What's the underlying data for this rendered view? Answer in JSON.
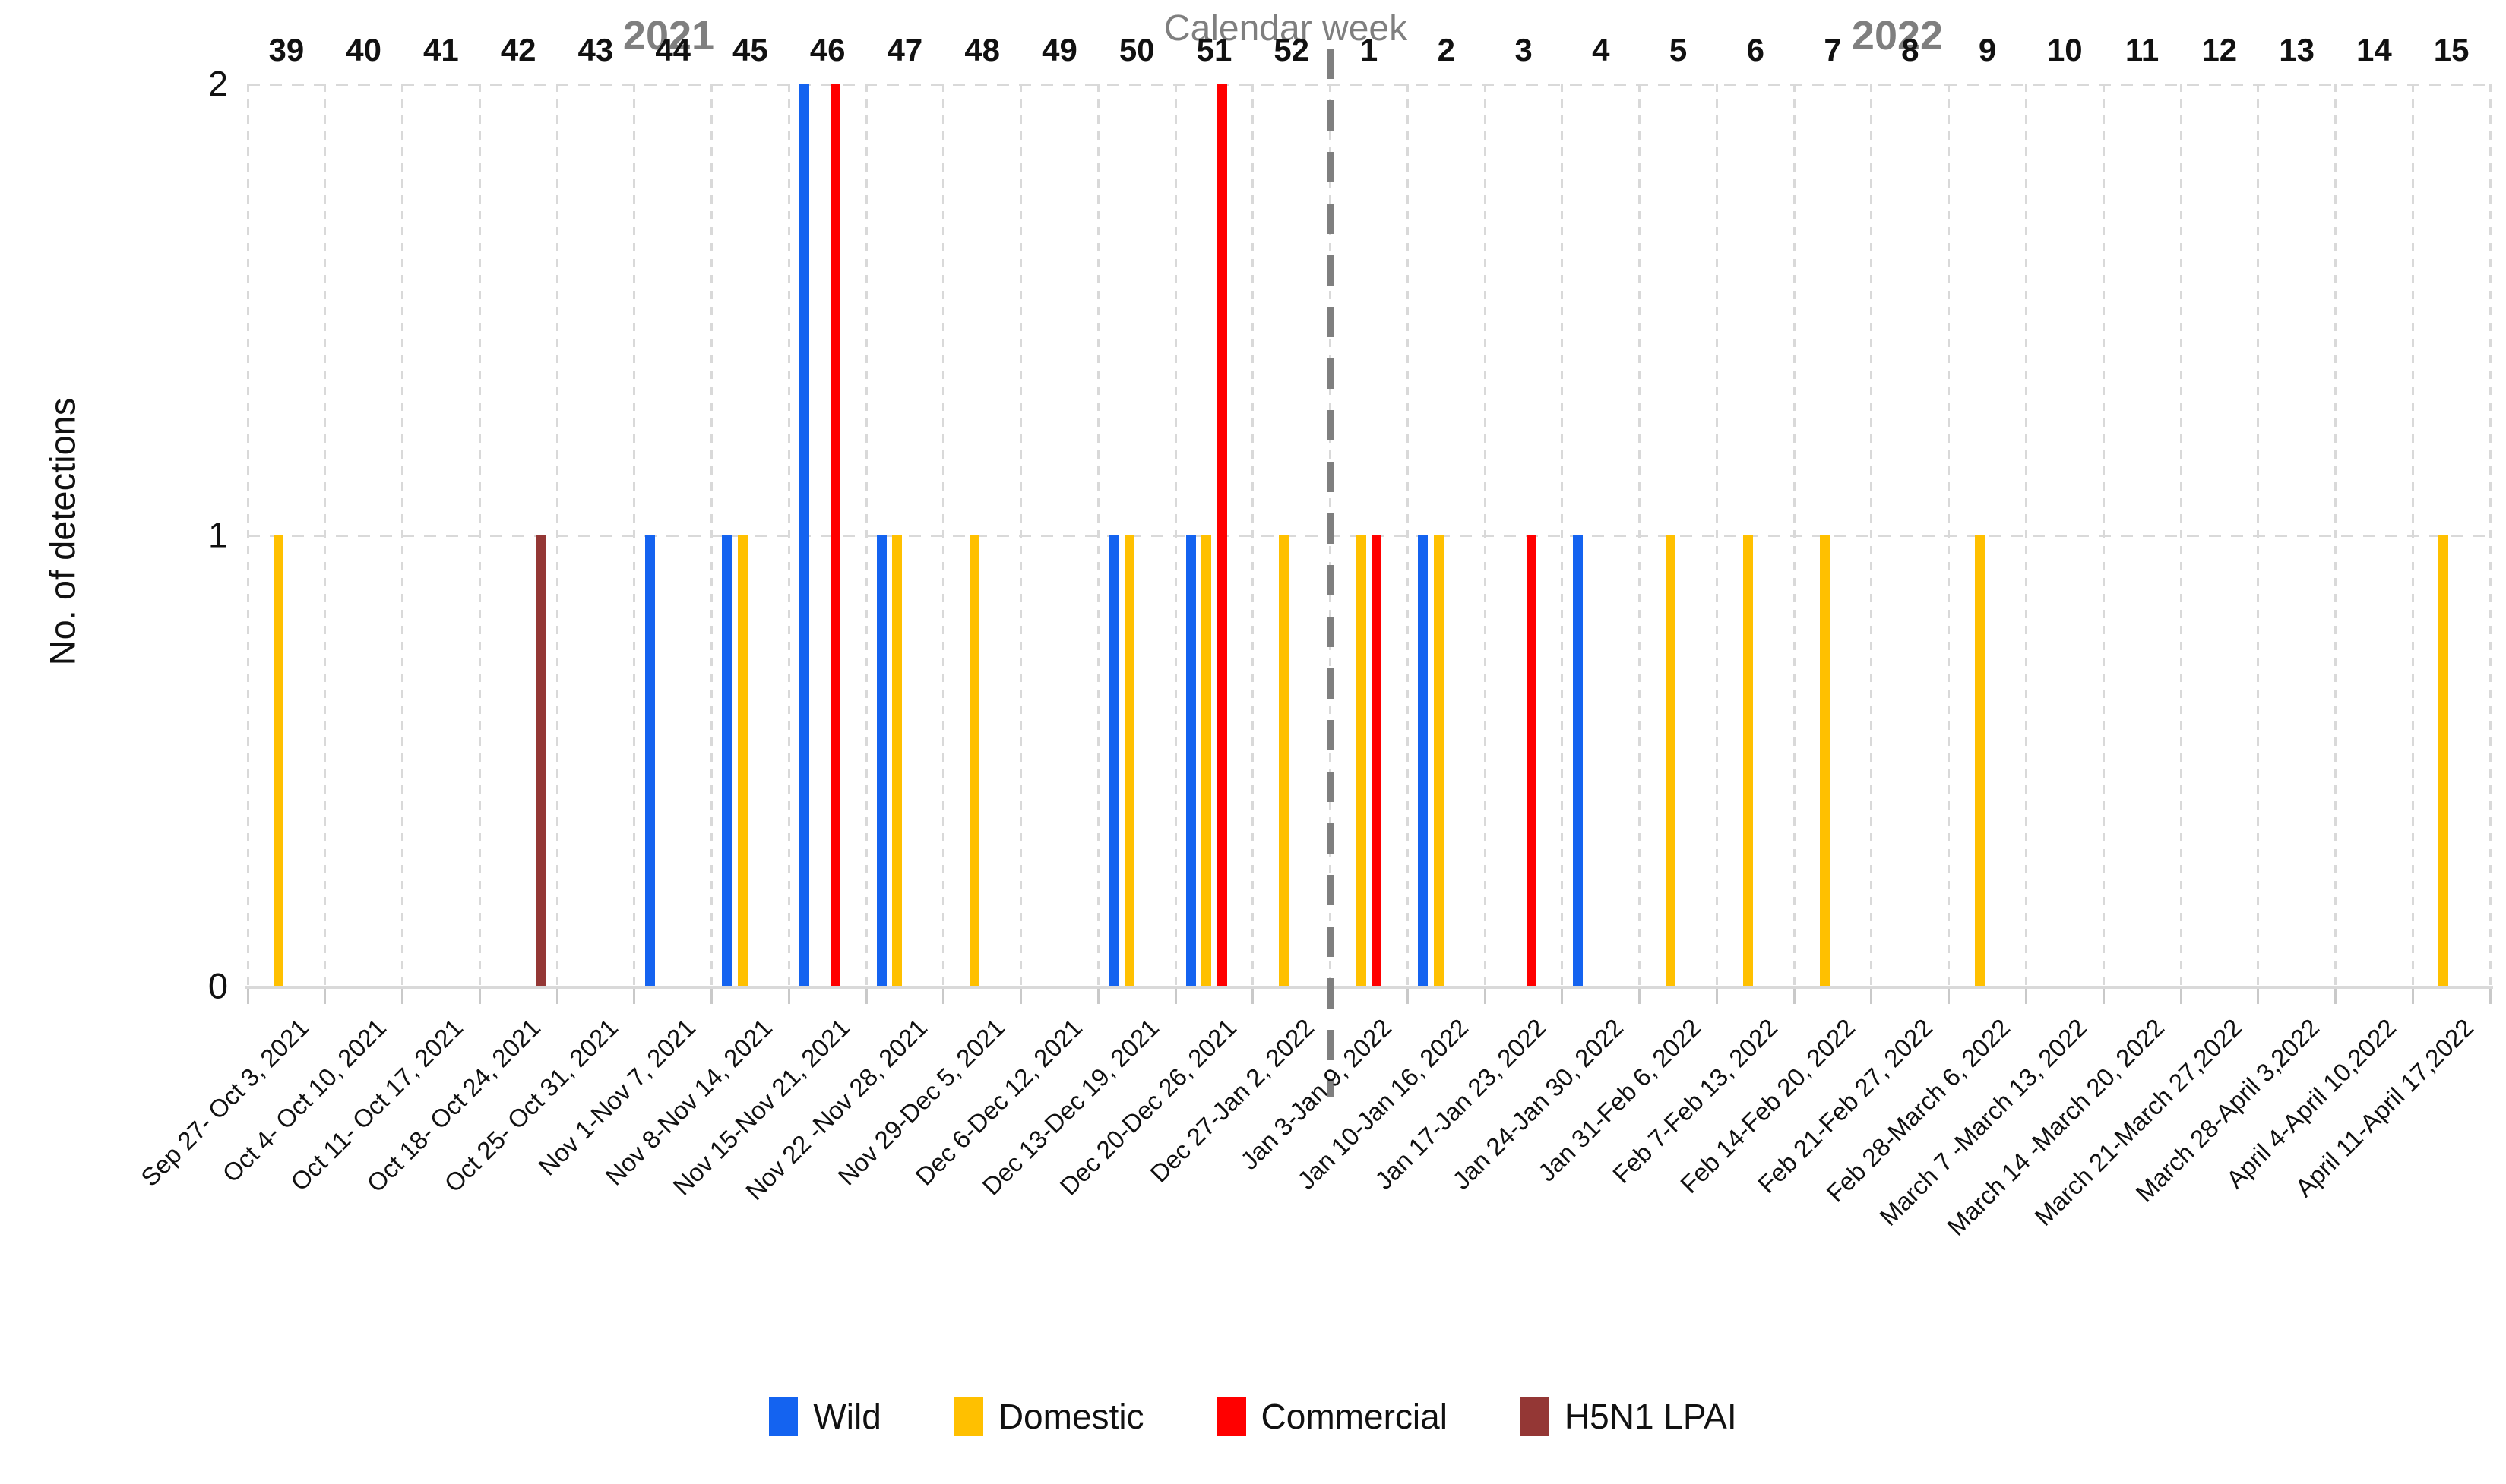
{
  "header": {
    "axis_top_title": "Calendar week",
    "year_left": "2021",
    "year_right": "2022"
  },
  "y_axis": {
    "label": "No. of detections",
    "ticks": [
      "2",
      "1",
      "0"
    ]
  },
  "legend": [
    {
      "label": "Wild",
      "color": "#1463f0"
    },
    {
      "label": "Domestic",
      "color": "#ffc000"
    },
    {
      "label": "Commercial",
      "color": "#ff0000"
    },
    {
      "label": "H5N1 LPAI",
      "color": "#943735"
    }
  ],
  "chart_data": {
    "type": "bar",
    "title": "Calendar week",
    "xlabel": "Calendar week",
    "ylabel": "No. of detections",
    "ylim": [
      0,
      2
    ],
    "grid": "dashed",
    "legend_position": "bottom",
    "year_divider_after_index": 13,
    "categories_week": [
      "39",
      "40",
      "41",
      "42",
      "43",
      "44",
      "45",
      "46",
      "47",
      "48",
      "49",
      "50",
      "51",
      "52",
      "1",
      "2",
      "3",
      "4",
      "5",
      "6",
      "7",
      "8",
      "9",
      "10",
      "11",
      "12",
      "13",
      "14",
      "15"
    ],
    "categories_dates": [
      "Sep 27- Oct 3, 2021",
      "Oct 4- Oct 10, 2021",
      "Oct 11- Oct 17, 2021",
      "Oct 18- Oct 24, 2021",
      "Oct 25- Oct 31, 2021",
      "Nov 1-Nov 7, 2021",
      "Nov 8-Nov 14, 2021",
      "Nov 15-Nov 21, 2021",
      "Nov 22 -Nov 28, 2021",
      "Nov 29-Dec 5, 2021",
      "Dec 6-Dec 12, 2021",
      "Dec 13-Dec 19, 2021",
      "Dec 20-Dec 26, 2021",
      "Dec 27-Jan 2, 2022",
      "Jan 3-Jan 9, 2022",
      "Jan 10-Jan 16, 2022",
      "Jan 17-Jan 23, 2022",
      "Jan 24-Jan 30, 2022",
      "Jan 31-Feb 6, 2022",
      "Feb 7-Feb 13, 2022",
      "Feb 14-Feb 20, 2022",
      "Feb 21-Feb 27, 2022",
      "Feb 28-March 6, 2022",
      "March 7 -March 13, 2022",
      "March 14 -March 20, 2022",
      "March 21-March 27,2022",
      "March 28-April 3,2022",
      "April 4-April 10,2022",
      "April 11-April 17,2022"
    ],
    "series": [
      {
        "name": "Wild",
        "color": "#1463f0",
        "values": [
          0,
          0,
          0,
          0,
          0,
          1,
          1,
          2,
          1,
          0,
          0,
          1,
          1,
          0,
          0,
          1,
          0,
          1,
          0,
          0,
          0,
          0,
          0,
          0,
          0,
          0,
          0,
          0,
          0
        ]
      },
      {
        "name": "Domestic",
        "color": "#ffc000",
        "values": [
          1,
          0,
          0,
          0,
          0,
          0,
          1,
          0,
          1,
          1,
          0,
          1,
          1,
          1,
          1,
          1,
          0,
          0,
          1,
          1,
          1,
          0,
          1,
          0,
          0,
          0,
          0,
          0,
          1
        ]
      },
      {
        "name": "Commercial",
        "color": "#ff0000",
        "values": [
          0,
          0,
          0,
          0,
          0,
          0,
          0,
          2,
          0,
          0,
          0,
          0,
          2,
          0,
          1,
          0,
          1,
          0,
          0,
          0,
          0,
          0,
          0,
          0,
          0,
          0,
          0,
          0,
          0
        ]
      },
      {
        "name": "H5N1 LPAI",
        "color": "#943735",
        "values": [
          0,
          0,
          0,
          1,
          0,
          0,
          0,
          0,
          0,
          0,
          0,
          0,
          0,
          0,
          0,
          0,
          0,
          0,
          0,
          0,
          0,
          0,
          0,
          0,
          0,
          0,
          0,
          0,
          0
        ]
      }
    ]
  }
}
